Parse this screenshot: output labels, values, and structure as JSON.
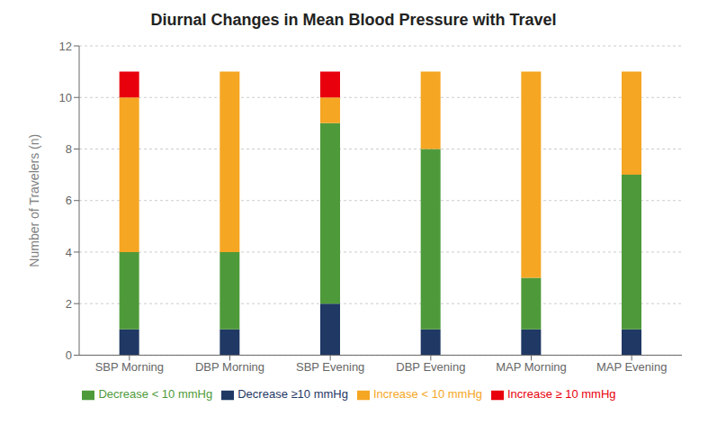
{
  "chart_data": {
    "type": "bar",
    "stacked": true,
    "title": "Diurnal Changes in Mean Blood Pressure with Travel",
    "y_label": "Number of Travelers (n)",
    "categories": [
      "SBP Morning",
      "DBP Morning",
      "SBP Evening",
      "DBP  Evening",
      "MAP Morning",
      "MAP Evening"
    ],
    "series": [
      {
        "name": "Decrease ≥10 mmHg",
        "color": "#1f3864",
        "values": [
          1,
          1,
          2,
          1,
          1,
          1
        ]
      },
      {
        "name": "Decrease < 10 mmHg",
        "color": "#4e9a3a",
        "values": [
          3,
          3,
          7,
          7,
          2,
          6
        ]
      },
      {
        "name": "Increase < 10 mmHg",
        "color": "#f5a623",
        "values": [
          6,
          7,
          1,
          3,
          8,
          4
        ]
      },
      {
        "name": "Increase ≥ 10 mmHg",
        "color": "#e8000d",
        "values": [
          1,
          0,
          1,
          0,
          0,
          0
        ]
      }
    ],
    "ylim": [
      0,
      12
    ],
    "yticks": [
      0,
      2,
      4,
      6,
      8,
      10,
      12
    ],
    "grid": true,
    "legend": "bottom"
  }
}
